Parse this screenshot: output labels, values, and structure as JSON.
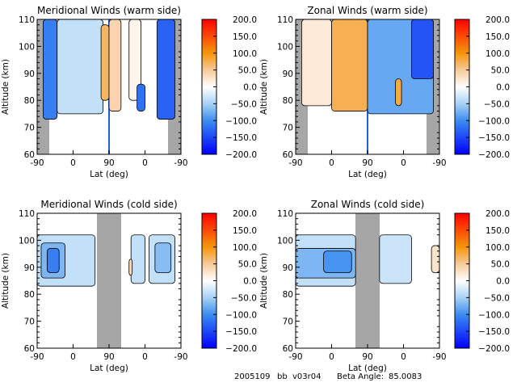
{
  "footer": {
    "date_code": "2005109",
    "tag": "bb",
    "version": "v03r04",
    "beta_label": "Beta Angle:",
    "beta_value": "85.0083"
  },
  "colormap": {
    "stops": [
      {
        "value": -200,
        "color": "#0000ff"
      },
      {
        "value": -100,
        "color": "#3c8cf0"
      },
      {
        "value": -50,
        "color": "#a8d2f5"
      },
      {
        "value": 0,
        "color": "#ffffff"
      },
      {
        "value": 50,
        "color": "#f7c99a"
      },
      {
        "value": 100,
        "color": "#f5960a"
      },
      {
        "value": 200,
        "color": "#ff0000"
      }
    ],
    "no_data_color": "#a6a6a6"
  },
  "chart_data": [
    {
      "type": "heatmap",
      "title": "Meridional Winds (warm side)",
      "xlabel": "Lat (deg)",
      "ylabel": "Altitude (km)",
      "xticks": [
        "-90",
        "0",
        "90",
        "0",
        "-90"
      ],
      "yticks": [
        "60",
        "70",
        "80",
        "90",
        "100",
        "110"
      ],
      "ylim": [
        60,
        110
      ],
      "colorbar_ticks": [
        "200.0",
        "150.0",
        "100.0",
        "50.0",
        "0.0",
        "-50.0",
        "-100.0",
        "-150.0",
        "-200.0"
      ],
      "colorbar_range": [
        -200,
        200
      ],
      "no_data_lat_ranges": [
        [
          -90,
          -75
        ],
        [
          -75,
          -75
        ]
      ],
      "regions": [
        {
          "lat": [
            -75,
            -40
          ],
          "alt": [
            73,
            110
          ],
          "value": -110
        },
        {
          "lat": [
            -40,
            75
          ],
          "alt": [
            75,
            110
          ],
          "value": -35
        },
        {
          "lat": [
            70,
            90
          ],
          "alt": [
            80,
            108
          ],
          "value": 70
        },
        {
          "lat": [
            90,
            60
          ],
          "alt": [
            76,
            110
          ],
          "value": 40
        },
        {
          "lat": [
            40,
            10
          ],
          "alt": [
            80,
            110
          ],
          "value": 10
        },
        {
          "lat": [
            20,
            0
          ],
          "alt": [
            76,
            86
          ],
          "value": -120
        },
        {
          "lat": [
            -30,
            -75
          ],
          "alt": [
            73,
            110
          ],
          "value": -130
        }
      ]
    },
    {
      "type": "heatmap",
      "title": "Zonal Winds (warm side)",
      "xlabel": "Lat (deg)",
      "ylabel": "Altitude (km)",
      "xticks": [
        "-90",
        "0",
        "90",
        "0",
        "-90"
      ],
      "yticks": [
        "60",
        "70",
        "80",
        "90",
        "100",
        "110"
      ],
      "ylim": [
        60,
        110
      ],
      "colorbar_ticks": [
        "200.0",
        "150.0",
        "100.0",
        "50.0",
        "0.0",
        "-50.0",
        "-100.0",
        "-150.0",
        "-200.0"
      ],
      "colorbar_range": [
        -200,
        200
      ],
      "regions": [
        {
          "lat": [
            -75,
            0
          ],
          "alt": [
            78,
            110
          ],
          "value": 20
        },
        {
          "lat": [
            0,
            90
          ],
          "alt": [
            76,
            110
          ],
          "value": 75
        },
        {
          "lat": [
            90,
            -75
          ],
          "alt": [
            75,
            110
          ],
          "value": -80
        },
        {
          "lat": [
            20,
            5
          ],
          "alt": [
            78,
            88
          ],
          "value": 80
        },
        {
          "lat": [
            -20,
            -75
          ],
          "alt": [
            88,
            110
          ],
          "value": -140
        }
      ]
    },
    {
      "type": "heatmap",
      "title": "Meridional Winds (cold side)",
      "xlabel": "Lat (deg)",
      "ylabel": "Altitude (km)",
      "xticks": [
        "-90",
        "0",
        "90",
        "0",
        "-90"
      ],
      "yticks": [
        "60",
        "70",
        "80",
        "90",
        "100",
        "110"
      ],
      "ylim": [
        60,
        110
      ],
      "colorbar_ticks": [
        "200.0",
        "150.0",
        "100.0",
        "50.0",
        "0.0",
        "-50.0",
        "-100.0",
        "-150.0",
        "-200.0"
      ],
      "colorbar_range": [
        -200,
        200
      ],
      "no_data_lat_ranges": [
        [
          60,
          120
        ]
      ],
      "regions": [
        {
          "lat": [
            -90,
            55
          ],
          "alt": [
            83,
            102
          ],
          "value": -35
        },
        {
          "lat": [
            -80,
            -20
          ],
          "alt": [
            86,
            99
          ],
          "value": -70
        },
        {
          "lat": [
            -65,
            -35
          ],
          "alt": [
            88,
            97
          ],
          "value": -110
        },
        {
          "lat": [
            145,
            180
          ],
          "alt": [
            84,
            102
          ],
          "value": -35
        },
        {
          "lat": [
            190,
            255
          ],
          "alt": [
            84,
            102
          ],
          "value": -35
        },
        {
          "lat": [
            205,
            245
          ],
          "alt": [
            88,
            99
          ],
          "value": -65
        },
        {
          "lat": [
            140,
            148
          ],
          "alt": [
            87,
            93
          ],
          "value": 35
        }
      ]
    },
    {
      "type": "heatmap",
      "title": "Zonal Winds (cold side)",
      "xlabel": "Lat (deg)",
      "ylabel": "Altitude (km)",
      "xticks": [
        "-90",
        "0",
        "90",
        "0",
        "-90"
      ],
      "yticks": [
        "60",
        "70",
        "80",
        "90",
        "100",
        "110"
      ],
      "ylim": [
        60,
        110
      ],
      "colorbar_ticks": [
        "200.0",
        "150.0",
        "100.0",
        "50.0",
        "0.0",
        "-50.0",
        "-100.0",
        "-150.0",
        "-200.0"
      ],
      "colorbar_range": [
        -200,
        200
      ],
      "no_data_lat_ranges": [
        [
          60,
          120
        ]
      ],
      "regions": [
        {
          "lat": [
            -90,
            60
          ],
          "alt": [
            83,
            102
          ],
          "value": -35
        },
        {
          "lat": [
            -90,
            60
          ],
          "alt": [
            86,
            97
          ],
          "value": -70
        },
        {
          "lat": [
            -20,
            50
          ],
          "alt": [
            88,
            96
          ],
          "value": -95
        },
        {
          "lat": [
            120,
            200
          ],
          "alt": [
            84,
            102
          ],
          "value": -30
        },
        {
          "lat": [
            250,
            270
          ],
          "alt": [
            88,
            98
          ],
          "value": 25
        }
      ]
    }
  ]
}
